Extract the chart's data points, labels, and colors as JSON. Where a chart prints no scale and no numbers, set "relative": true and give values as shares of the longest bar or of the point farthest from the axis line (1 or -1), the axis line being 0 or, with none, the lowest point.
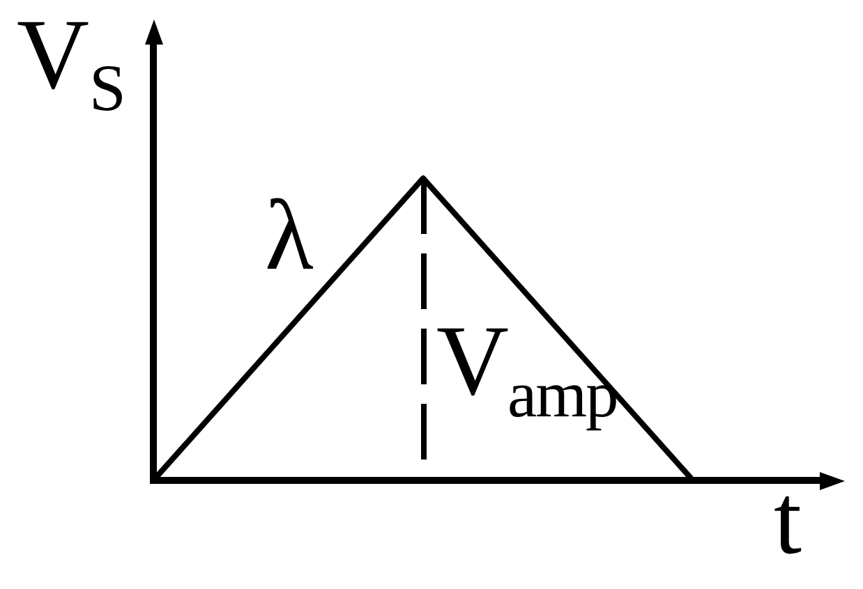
{
  "chart_data": {
    "type": "line",
    "xlabel": "t",
    "ylabel": "V$_{S}$",
    "annotations": [
      "λ",
      "V$_{amp}$"
    ],
    "categories": [
      null,
      null,
      null
    ],
    "values": [
      0,
      1,
      0
    ],
    "color": "#000000",
    "relative": true
  }
}
